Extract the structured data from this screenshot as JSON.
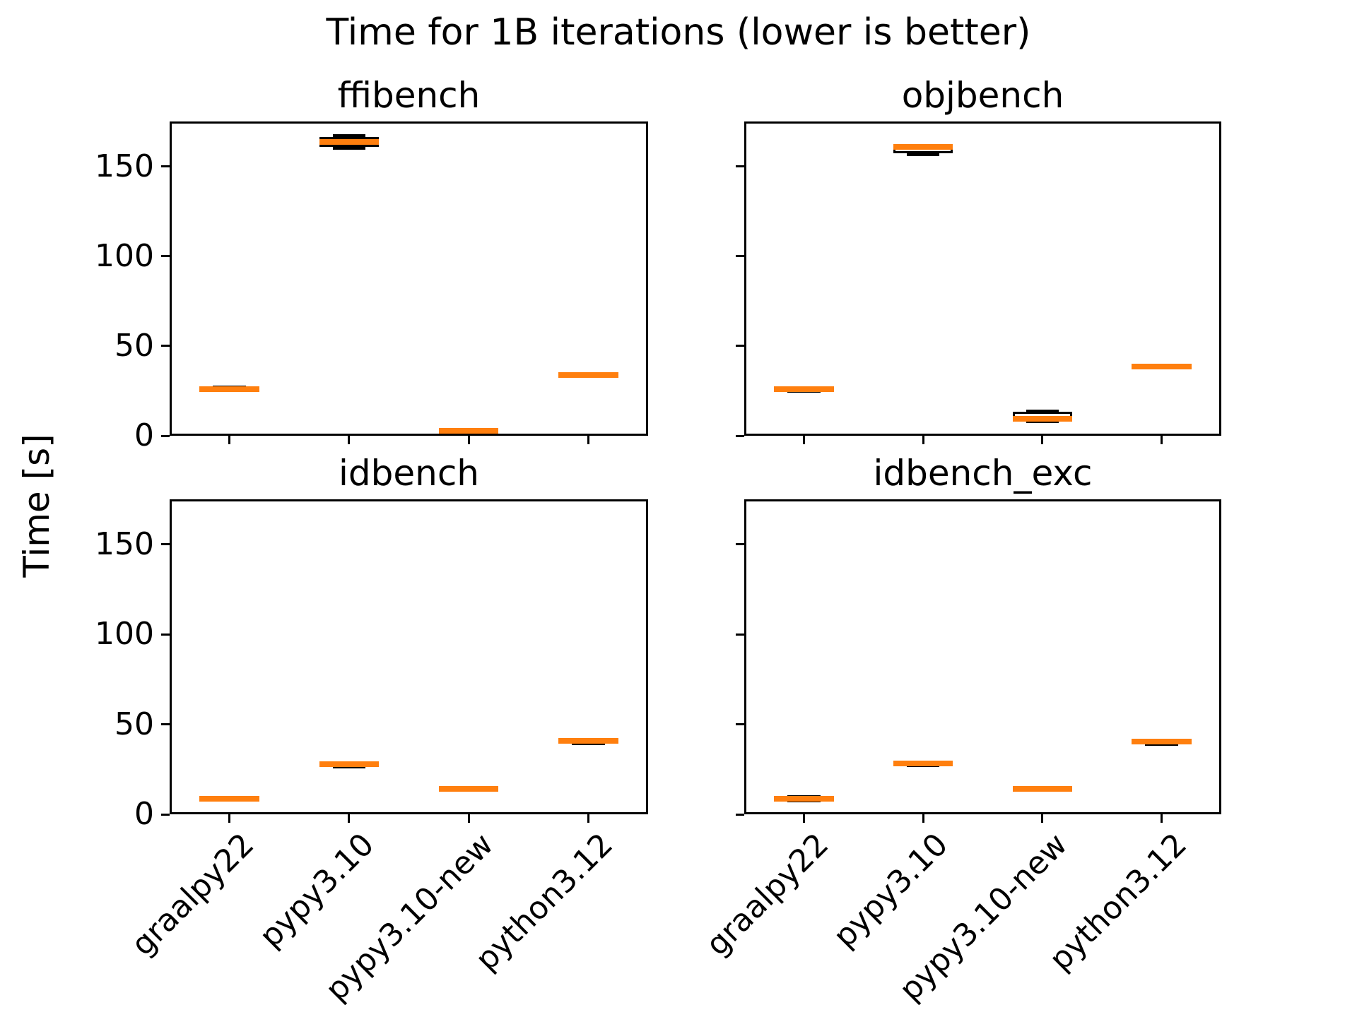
{
  "figure": {
    "suptitle": "Time for 1B iterations (lower is better)",
    "ylabel": "Time [s]"
  },
  "chart_data": {
    "type": "boxplot",
    "layout_grid": [
      2,
      2
    ],
    "suptitle": "Time for 1B iterations (lower is better)",
    "ylabel": "Time [s]",
    "categories": [
      "graalpy22",
      "pypy3.10",
      "pypy3.10-new",
      "python3.12"
    ],
    "yticks": [
      0,
      50,
      100,
      150
    ],
    "ylim": [
      0,
      175
    ],
    "grid": false,
    "colors": {
      "median": "#ff7f0e",
      "box_edge": "#000000",
      "background": "#ffffff"
    },
    "subplots": [
      {
        "title": "ffibench",
        "boxes": [
          {
            "category": "graalpy22",
            "whislo": 25.0,
            "q1": 25.4,
            "med": 26.1,
            "q3": 26.6,
            "whishi": 27.0
          },
          {
            "category": "pypy3.10",
            "whislo": 160.2,
            "q1": 161.0,
            "med": 163.4,
            "q3": 166.4,
            "whishi": 167.0
          },
          {
            "category": "pypy3.10-new",
            "whislo": 2.3,
            "q1": 2.5,
            "med": 2.8,
            "q3": 3.1,
            "whishi": 3.3
          },
          {
            "category": "python3.12",
            "whislo": 33.4,
            "q1": 33.7,
            "med": 34.0,
            "q3": 34.3,
            "whishi": 34.6
          }
        ]
      },
      {
        "title": "objbench",
        "boxes": [
          {
            "category": "graalpy22",
            "whislo": 24.8,
            "q1": 25.3,
            "med": 26.0,
            "q3": 26.4,
            "whishi": 26.7
          },
          {
            "category": "pypy3.10",
            "whislo": 156.5,
            "q1": 157.2,
            "med": 160.9,
            "q3": 161.3,
            "whishi": 161.7
          },
          {
            "category": "pypy3.10-new",
            "whislo": 7.7,
            "q1": 8.3,
            "med": 9.4,
            "q3": 13.2,
            "whishi": 13.8
          },
          {
            "category": "python3.12",
            "whislo": 37.9,
            "q1": 38.1,
            "med": 38.4,
            "q3": 38.7,
            "whishi": 39.0
          }
        ]
      },
      {
        "title": "idbench",
        "boxes": [
          {
            "category": "graalpy22",
            "whislo": 7.7,
            "q1": 8.1,
            "med": 8.7,
            "q3": 9.1,
            "whishi": 9.4
          },
          {
            "category": "pypy3.10",
            "whislo": 26.3,
            "q1": 27.2,
            "med": 28.0,
            "q3": 28.4,
            "whishi": 28.7
          },
          {
            "category": "pypy3.10-new",
            "whislo": 13.4,
            "q1": 13.7,
            "med": 14.1,
            "q3": 14.4,
            "whishi": 14.7
          },
          {
            "category": "python3.12",
            "whislo": 39.4,
            "q1": 40.1,
            "med": 41.0,
            "q3": 41.3,
            "whishi": 41.6
          }
        ]
      },
      {
        "title": "idbench_exc",
        "boxes": [
          {
            "category": "graalpy22",
            "whislo": 7.5,
            "q1": 7.9,
            "med": 8.5,
            "q3": 9.2,
            "whishi": 9.7
          },
          {
            "category": "pypy3.10",
            "whislo": 26.9,
            "q1": 27.5,
            "med": 28.3,
            "q3": 28.7,
            "whishi": 29.0
          },
          {
            "category": "pypy3.10-new",
            "whislo": 13.6,
            "q1": 13.9,
            "med": 14.3,
            "q3": 14.6,
            "whishi": 14.9
          },
          {
            "category": "python3.12",
            "whislo": 38.7,
            "q1": 39.4,
            "med": 40.4,
            "q3": 40.7,
            "whishi": 41.0
          }
        ]
      }
    ]
  }
}
